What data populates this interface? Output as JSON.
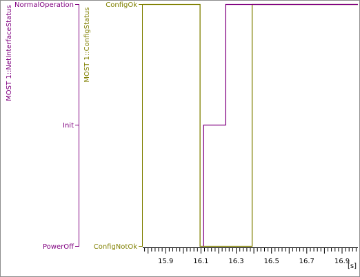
{
  "chart_data": {
    "type": "line",
    "xlim": [
      15.77,
      16.99
    ],
    "x_ticks": [
      "15.9",
      "16.1",
      "16.3",
      "16.5",
      "16.7",
      "16.9"
    ],
    "x_unit": "[s]",
    "series": [
      {
        "name": "MOST 1::NetInterfaceStatus",
        "color": "#800080",
        "levels": [
          "PowerOff",
          "Init",
          "NormalOperation"
        ],
        "points": [
          [
            16.115,
            "PowerOff"
          ],
          [
            16.115,
            "Init"
          ],
          [
            16.24,
            "Init"
          ],
          [
            16.24,
            "NormalOperation"
          ],
          [
            16.99,
            "NormalOperation"
          ]
        ]
      },
      {
        "name": "MOST 1::ConfigStatus",
        "color": "#808000",
        "levels": [
          "ConfigNotOk",
          "ConfigOk"
        ],
        "points": [
          [
            15.77,
            "ConfigOk"
          ],
          [
            16.095,
            "ConfigOk"
          ],
          [
            16.095,
            "ConfigNotOk"
          ],
          [
            16.39,
            "ConfigNotOk"
          ],
          [
            16.39,
            "ConfigOk"
          ],
          [
            16.99,
            "ConfigOk"
          ]
        ]
      }
    ]
  }
}
